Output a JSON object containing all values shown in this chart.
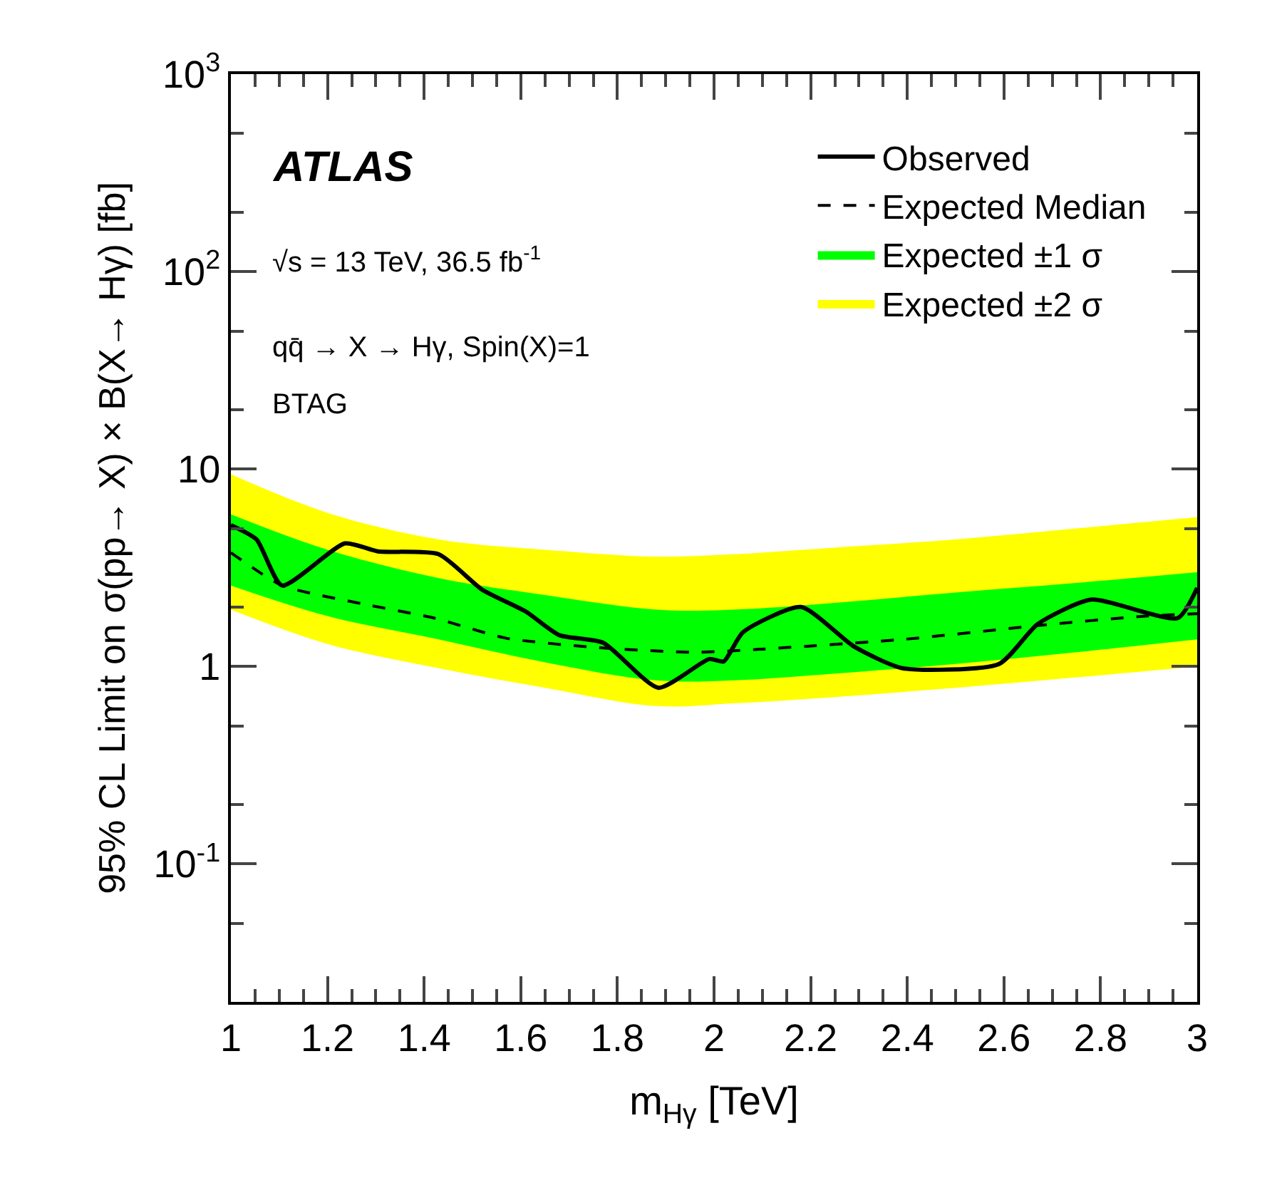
{
  "chart_data": {
    "type": "line",
    "xlabel": "m$_{Hγ}$ [TeV]",
    "ylabel": "95% CL Limit on σ(pp→ X) × B(X→ Hγ) [fb]",
    "annotations": [
      "ATLAS",
      "√s = 13 TeV, 36.5 fb$^{-1}$",
      "qq̄ → X → Hγ, Spin(X)=1",
      "BTAG"
    ],
    "log": "y",
    "grid": false,
    "legend": "top right",
    "marker": "none",
    "xlim": [
      1,
      3
    ],
    "xticks": [
      1,
      1.2,
      1.4,
      1.6,
      1.8,
      2,
      2.2,
      2.4,
      2.6,
      2.8,
      3
    ],
    "ylim": [
      0.02,
      1000
    ],
    "yticks": [
      {
        "value": 0.1,
        "label": "10$^{-1}$"
      },
      1,
      10,
      {
        "value": 100,
        "label": "10$^{2}$"
      },
      {
        "value": 1000,
        "label": "10$^{3}$"
      }
    ],
    "series": [
      {
        "name": "Expected ±2 σ",
        "color": "#ffff00",
        "x": [
          1,
          1.2,
          1.43,
          1.65,
          1.88,
          2.04,
          2.25,
          2.5,
          2.75,
          3
        ],
        "values": [
          null,
          null,
          null,
          null,
          null,
          null,
          null,
          null,
          null,
          null
        ],
        "lower": [
          1.94,
          1.3,
          0.98,
          0.78,
          0.63,
          0.65,
          0.7,
          0.78,
          0.88,
          1.0
        ],
        "upper": [
          9.4,
          6.0,
          4.4,
          3.9,
          3.6,
          3.7,
          4.0,
          4.4,
          5.0,
          5.7
        ]
      },
      {
        "name": "Expected ±1 σ",
        "color": "#00ff00",
        "x": [
          1,
          1.2,
          1.43,
          1.65,
          1.88,
          2.04,
          2.25,
          2.5,
          2.75,
          3
        ],
        "values": [
          null,
          null,
          null,
          null,
          null,
          null,
          null,
          null,
          null,
          null
        ],
        "lower": [
          2.57,
          1.8,
          1.37,
          1.05,
          0.85,
          0.85,
          0.92,
          1.03,
          1.18,
          1.37
        ],
        "upper": [
          5.9,
          3.9,
          2.8,
          2.3,
          1.94,
          1.94,
          2.1,
          2.37,
          2.65,
          3.0
        ]
      },
      {
        "name": "Observed",
        "color": "#000000",
        "line_style": "solid",
        "x": [
          1,
          1.053,
          1.106,
          1.236,
          1.304,
          1.43,
          1.52,
          1.61,
          1.68,
          1.77,
          1.885,
          1.99,
          2.02,
          2.06,
          2.18,
          2.29,
          2.39,
          2.59,
          2.67,
          2.78,
          2.96,
          3
        ],
        "values": [
          5.2,
          4.4,
          2.57,
          4.2,
          3.83,
          3.7,
          2.45,
          1.9,
          1.44,
          1.32,
          0.78,
          1.09,
          1.06,
          1.49,
          2.0,
          1.26,
          0.98,
          1.03,
          1.64,
          2.18,
          1.76,
          2.5
        ]
      },
      {
        "name": "Expected Median",
        "color": "#000000",
        "line_style": "dashed",
        "x": [
          1,
          1.106,
          1.275,
          1.42,
          1.57,
          1.77,
          1.96,
          2.09,
          2.39,
          2.68,
          2.88,
          3
        ],
        "values": [
          3.77,
          2.57,
          2.07,
          1.76,
          1.39,
          1.24,
          1.18,
          1.22,
          1.37,
          1.62,
          1.79,
          1.85
        ]
      }
    ]
  }
}
